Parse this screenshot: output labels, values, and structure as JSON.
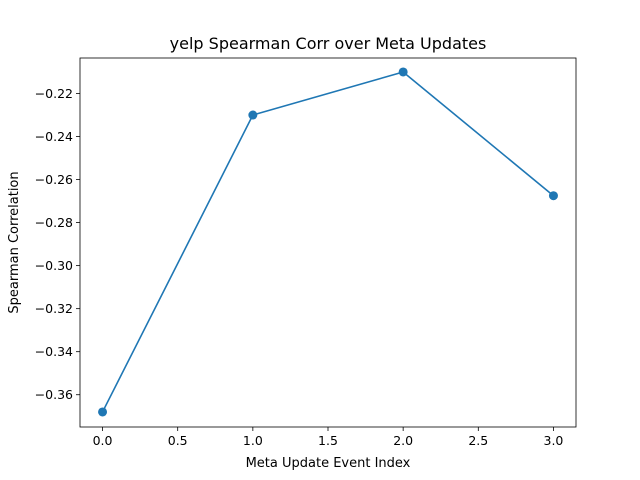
{
  "chart_data": {
    "type": "line",
    "title": "yelp Spearman Corr over Meta Updates",
    "xlabel": "Meta Update Event Index",
    "ylabel": "Spearman Correlation",
    "x": [
      0,
      1,
      2,
      3
    ],
    "series": [
      {
        "values": [
          -0.368,
          -0.23,
          -0.21,
          -0.2675
        ]
      }
    ],
    "xlim": [
      -0.15,
      3.15
    ],
    "ylim": [
      -0.375,
      -0.2035
    ],
    "xticks": [
      0.0,
      0.5,
      1.0,
      1.5,
      2.0,
      2.5,
      3.0
    ],
    "xtick_labels": [
      "0.0",
      "0.5",
      "1.0",
      "1.5",
      "2.0",
      "2.5",
      "3.0"
    ],
    "yticks": [
      -0.36,
      -0.34,
      -0.32,
      -0.3,
      -0.28,
      -0.26,
      -0.24,
      -0.22
    ],
    "ytick_labels": [
      "−0.36",
      "−0.34",
      "−0.32",
      "−0.30",
      "−0.28",
      "−0.26",
      "−0.24",
      "−0.22"
    ],
    "grid": false,
    "legend": "none",
    "colors": {
      "series": "#1f77b4",
      "axes": "#000000",
      "background": "#ffffff"
    }
  }
}
